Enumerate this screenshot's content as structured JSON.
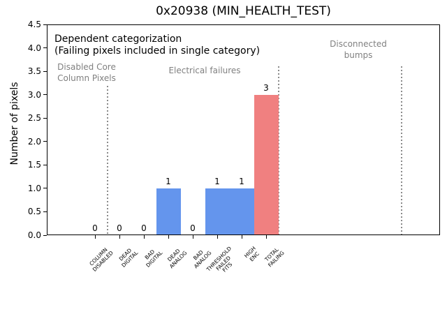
{
  "chart_data": {
    "type": "bar",
    "title": "0x20938 (MIN_HEALTH_TEST)",
    "xlabel": "",
    "ylabel": "Number of pixels",
    "ylim": [
      0,
      4.5
    ],
    "ytick_step": 0.5,
    "grid": false,
    "legend": false,
    "categories": [
      "COLUMN\nDISABLED",
      "DEAD\nDIGITAL",
      "BAD\nDIGITAL",
      "DEAD\nANALOG",
      "BAD\nANALOG",
      "THRESHOLD\nFAILED\nFITS",
      "HIGH\nENC",
      "TOTAL\nFAILING"
    ],
    "values": [
      0,
      0,
      0,
      1,
      0,
      1,
      1,
      3
    ],
    "bar_value_labels": [
      "0",
      "0",
      "0",
      "1",
      "0",
      "1",
      "1",
      "3"
    ],
    "bar_colors": [
      "#6495ED",
      "#6495ED",
      "#6495ED",
      "#6495ED",
      "#6495ED",
      "#6495ED",
      "#6495ED",
      "#F08080"
    ],
    "annotations": {
      "primary": "Dependent categorization",
      "secondary": "(Failing pixels included in single category)",
      "sections": [
        {
          "label": "Disabled Core\nColumn Pixels"
        },
        {
          "label": "Electrical failures"
        },
        {
          "label": "Disconnected\nbumps"
        }
      ]
    },
    "separators": {
      "style": "dotted",
      "color": "#8a8a8a",
      "positions_after_category": [
        0.5,
        7.5,
        12.55
      ]
    },
    "colors": {
      "bar_default": "#6495ED",
      "bar_total_failing": "#F08080",
      "annotation_grey": "#808080",
      "axes": "#000000",
      "background": "#ffffff"
    }
  }
}
